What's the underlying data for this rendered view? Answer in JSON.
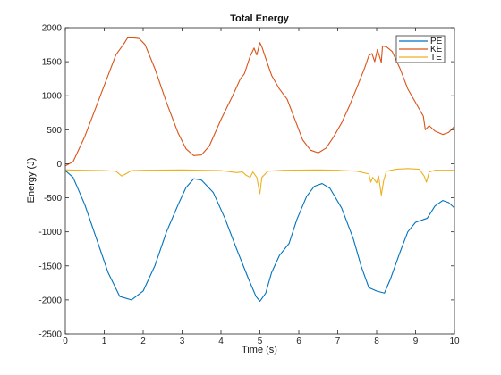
{
  "chart_data": {
    "type": "line",
    "title": "Total Energy",
    "xlabel": "Time (s)",
    "ylabel": "Energy (J)",
    "xlim": [
      0,
      10
    ],
    "ylim": [
      -2500,
      2000
    ],
    "xticks": [
      0,
      1,
      2,
      3,
      4,
      5,
      6,
      7,
      8,
      9,
      10
    ],
    "yticks": [
      -2500,
      -2000,
      -1500,
      -1000,
      -500,
      0,
      500,
      1000,
      1500,
      2000
    ],
    "grid": false,
    "legend_position": "top-right",
    "series": [
      {
        "name": "PE",
        "color": "#0072BD",
        "points": [
          [
            0,
            -100
          ],
          [
            0.2,
            -200
          ],
          [
            0.5,
            -600
          ],
          [
            0.8,
            -1100
          ],
          [
            1.1,
            -1600
          ],
          [
            1.4,
            -1950
          ],
          [
            1.7,
            -2000
          ],
          [
            2.0,
            -1870
          ],
          [
            2.3,
            -1500
          ],
          [
            2.6,
            -1000
          ],
          [
            2.9,
            -600
          ],
          [
            3.1,
            -350
          ],
          [
            3.3,
            -220
          ],
          [
            3.5,
            -240
          ],
          [
            3.8,
            -420
          ],
          [
            4.1,
            -800
          ],
          [
            4.4,
            -1250
          ],
          [
            4.7,
            -1680
          ],
          [
            4.9,
            -1950
          ],
          [
            5.0,
            -2020
          ],
          [
            5.15,
            -1900
          ],
          [
            5.3,
            -1600
          ],
          [
            5.5,
            -1350
          ],
          [
            5.75,
            -1170
          ],
          [
            5.95,
            -820
          ],
          [
            6.2,
            -480
          ],
          [
            6.4,
            -330
          ],
          [
            6.6,
            -290
          ],
          [
            6.8,
            -360
          ],
          [
            7.1,
            -650
          ],
          [
            7.4,
            -1100
          ],
          [
            7.6,
            -1500
          ],
          [
            7.8,
            -1820
          ],
          [
            8.0,
            -1870
          ],
          [
            8.2,
            -1900
          ],
          [
            8.35,
            -1700
          ],
          [
            8.6,
            -1300
          ],
          [
            8.8,
            -1000
          ],
          [
            9.0,
            -860
          ],
          [
            9.3,
            -800
          ],
          [
            9.5,
            -620
          ],
          [
            9.7,
            -540
          ],
          [
            9.85,
            -570
          ],
          [
            10.0,
            -650
          ]
        ]
      },
      {
        "name": "KE",
        "color": "#D95319",
        "points": [
          [
            0,
            -30
          ],
          [
            0.2,
            30
          ],
          [
            0.5,
            400
          ],
          [
            0.8,
            850
          ],
          [
            1.1,
            1300
          ],
          [
            1.3,
            1600
          ],
          [
            1.5,
            1760
          ],
          [
            1.6,
            1850
          ],
          [
            1.75,
            1850
          ],
          [
            1.9,
            1840
          ],
          [
            2.05,
            1750
          ],
          [
            2.3,
            1400
          ],
          [
            2.6,
            900
          ],
          [
            2.9,
            450
          ],
          [
            3.1,
            220
          ],
          [
            3.3,
            120
          ],
          [
            3.5,
            130
          ],
          [
            3.7,
            260
          ],
          [
            4.0,
            650
          ],
          [
            4.3,
            1000
          ],
          [
            4.5,
            1250
          ],
          [
            4.6,
            1320
          ],
          [
            4.75,
            1580
          ],
          [
            4.85,
            1700
          ],
          [
            4.92,
            1600
          ],
          [
            5.0,
            1780
          ],
          [
            5.05,
            1720
          ],
          [
            5.15,
            1550
          ],
          [
            5.3,
            1300
          ],
          [
            5.5,
            1100
          ],
          [
            5.7,
            950
          ],
          [
            5.9,
            650
          ],
          [
            6.1,
            350
          ],
          [
            6.3,
            200
          ],
          [
            6.5,
            160
          ],
          [
            6.7,
            230
          ],
          [
            6.9,
            400
          ],
          [
            7.1,
            600
          ],
          [
            7.3,
            850
          ],
          [
            7.5,
            1130
          ],
          [
            7.7,
            1420
          ],
          [
            7.8,
            1590
          ],
          [
            7.88,
            1620
          ],
          [
            7.95,
            1500
          ],
          [
            8.02,
            1680
          ],
          [
            8.12,
            1490
          ],
          [
            8.15,
            1730
          ],
          [
            8.25,
            1720
          ],
          [
            8.4,
            1650
          ],
          [
            8.6,
            1400
          ],
          [
            8.8,
            1100
          ],
          [
            9.0,
            900
          ],
          [
            9.1,
            800
          ],
          [
            9.2,
            700
          ],
          [
            9.25,
            500
          ],
          [
            9.35,
            560
          ],
          [
            9.5,
            480
          ],
          [
            9.7,
            430
          ],
          [
            9.85,
            460
          ],
          [
            10.0,
            550
          ]
        ]
      },
      {
        "name": "TE",
        "color": "#EDB120",
        "points": [
          [
            0,
            -90
          ],
          [
            0.5,
            -95
          ],
          [
            1.0,
            -100
          ],
          [
            1.3,
            -110
          ],
          [
            1.45,
            -180
          ],
          [
            1.55,
            -150
          ],
          [
            1.7,
            -100
          ],
          [
            2.0,
            -95
          ],
          [
            3.0,
            -90
          ],
          [
            4.0,
            -100
          ],
          [
            4.4,
            -130
          ],
          [
            4.55,
            -120
          ],
          [
            4.65,
            -170
          ],
          [
            4.75,
            -200
          ],
          [
            4.82,
            -120
          ],
          [
            4.92,
            -200
          ],
          [
            5.0,
            -440
          ],
          [
            5.05,
            -200
          ],
          [
            5.2,
            -110
          ],
          [
            5.6,
            -95
          ],
          [
            6.5,
            -90
          ],
          [
            7.0,
            -95
          ],
          [
            7.5,
            -110
          ],
          [
            7.8,
            -150
          ],
          [
            7.85,
            -270
          ],
          [
            7.9,
            -200
          ],
          [
            8.0,
            -280
          ],
          [
            8.05,
            -180
          ],
          [
            8.12,
            -460
          ],
          [
            8.18,
            -250
          ],
          [
            8.25,
            -110
          ],
          [
            8.5,
            -80
          ],
          [
            8.8,
            -70
          ],
          [
            9.1,
            -80
          ],
          [
            9.22,
            -180
          ],
          [
            9.28,
            -270
          ],
          [
            9.35,
            -120
          ],
          [
            9.5,
            -95
          ],
          [
            10.0,
            -95
          ]
        ]
      }
    ]
  }
}
